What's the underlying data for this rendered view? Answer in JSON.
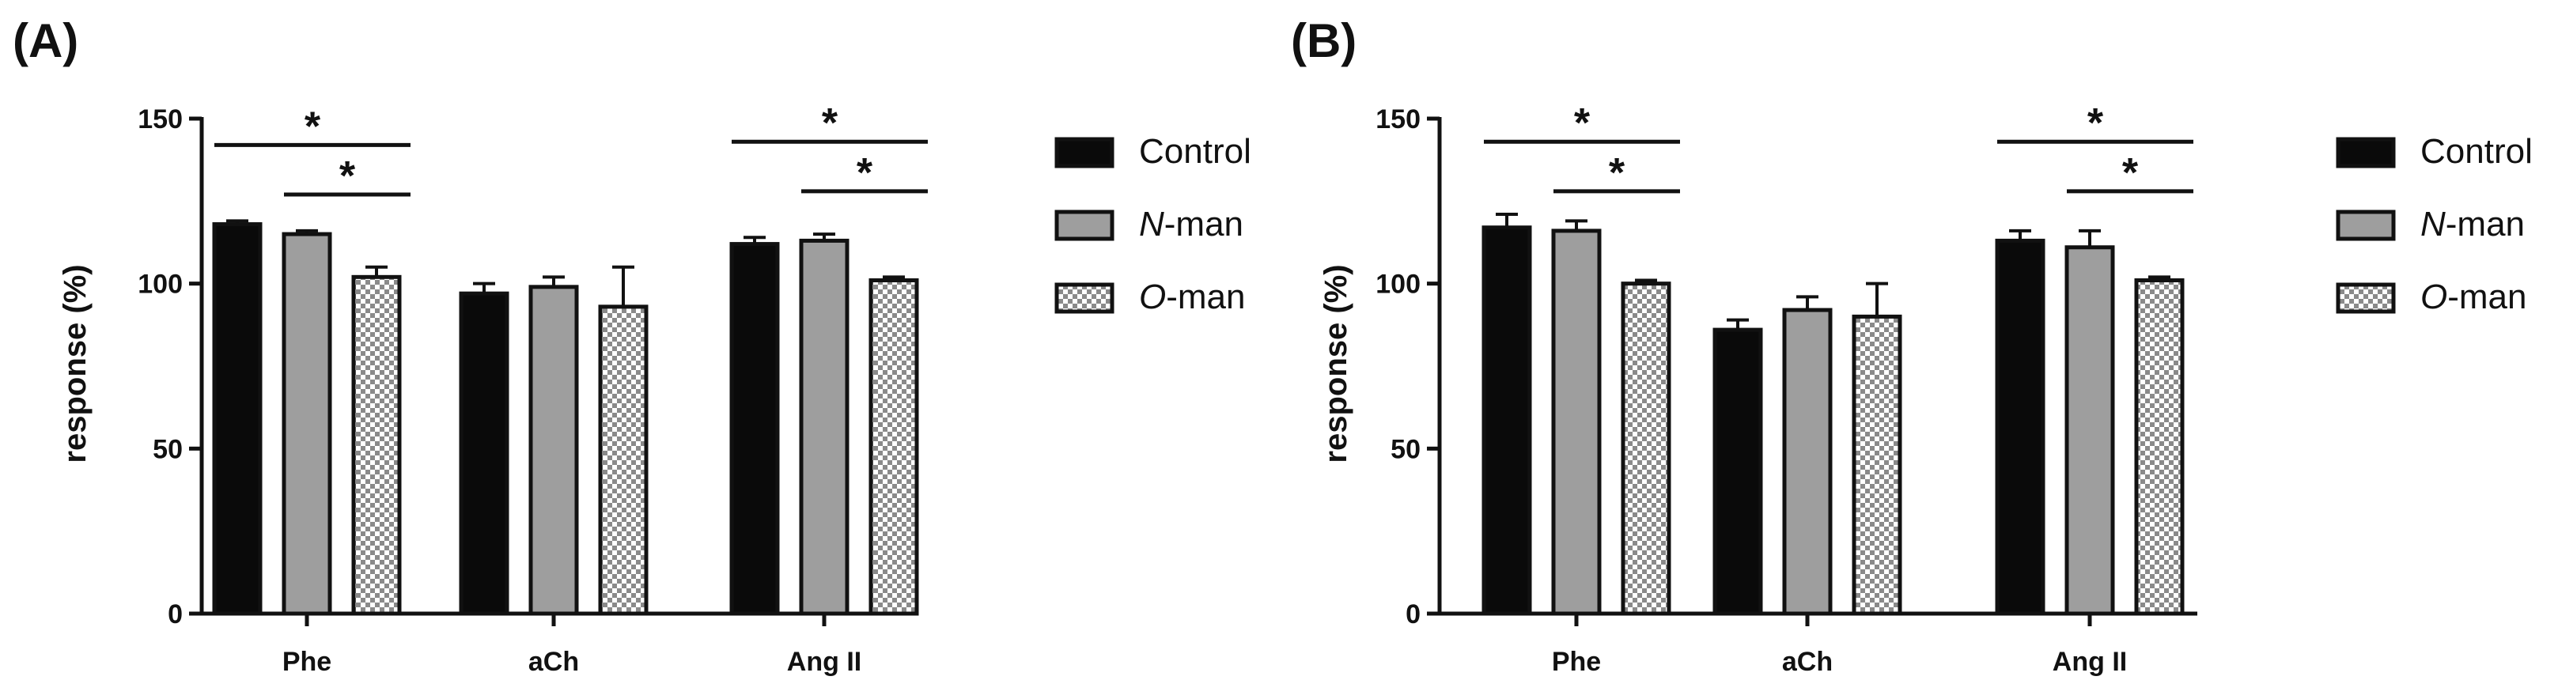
{
  "panels": [
    {
      "label": "(A)",
      "chart_data": {
        "type": "bar",
        "categories": [
          "Phe",
          "aCh",
          "Ang II"
        ],
        "series": [
          {
            "name": "Control",
            "values": [
              118,
              97,
              112
            ],
            "errors": [
              1,
              3,
              2
            ],
            "pattern": "solid-black"
          },
          {
            "name": "N-man",
            "values": [
              115,
              99,
              113
            ],
            "errors": [
              1,
              3,
              2
            ],
            "pattern": "gray"
          },
          {
            "name": "O-man",
            "values": [
              102,
              93,
              101
            ],
            "errors": [
              3,
              12,
              1
            ],
            "pattern": "checker"
          }
        ],
        "ylabel": "response (%)",
        "xlabel": "",
        "ylim": [
          0,
          150
        ],
        "yticks": [
          0,
          50,
          100,
          150
        ],
        "significance": [
          {
            "category": "Phe",
            "from": "Control",
            "to": "O-man",
            "y": 142,
            "label": "*"
          },
          {
            "category": "Phe",
            "from": "N-man",
            "to": "O-man",
            "y": 127,
            "label": "*"
          },
          {
            "category": "Ang II",
            "from": "Control",
            "to": "O-man",
            "y": 143,
            "label": "*"
          },
          {
            "category": "Ang II",
            "from": "N-man",
            "to": "O-man",
            "y": 128,
            "label": "*"
          }
        ]
      }
    },
    {
      "label": "(B)",
      "chart_data": {
        "type": "bar",
        "categories": [
          "Phe",
          "aCh",
          "Ang II"
        ],
        "series": [
          {
            "name": "Control",
            "values": [
              117,
              86,
              113
            ],
            "errors": [
              4,
              3,
              3
            ],
            "pattern": "solid-black"
          },
          {
            "name": "N-man",
            "values": [
              116,
              92,
              111
            ],
            "errors": [
              3,
              4,
              5
            ],
            "pattern": "gray"
          },
          {
            "name": "O-man",
            "values": [
              100,
              90,
              101
            ],
            "errors": [
              1,
              10,
              1
            ],
            "pattern": "checker"
          }
        ],
        "ylabel": "response (%)",
        "xlabel": "",
        "ylim": [
          0,
          150
        ],
        "yticks": [
          0,
          50,
          100,
          150
        ],
        "significance": [
          {
            "category": "Phe",
            "from": "Control",
            "to": "O-man",
            "y": 143,
            "label": "*"
          },
          {
            "category": "Phe",
            "from": "N-man",
            "to": "O-man",
            "y": 128,
            "label": "*"
          },
          {
            "category": "Ang II",
            "from": "Control",
            "to": "O-man",
            "y": 143,
            "label": "*"
          },
          {
            "category": "Ang II",
            "from": "N-man",
            "to": "O-man",
            "y": 128,
            "label": "*"
          }
        ]
      }
    }
  ],
  "legend": [
    {
      "prefix": "",
      "italic": "",
      "text": "Control",
      "pattern": "solid-black"
    },
    {
      "prefix": "",
      "italic": "N",
      "text": "-man",
      "pattern": "gray"
    },
    {
      "prefix": "",
      "italic": "O",
      "text": "-man",
      "pattern": "checker"
    }
  ],
  "colors": {
    "black": "#0a0a0a",
    "gray": "#9e9e9e",
    "checkA": "#ffffff",
    "checkB": "#8a8a8a",
    "axis": "#111111"
  }
}
